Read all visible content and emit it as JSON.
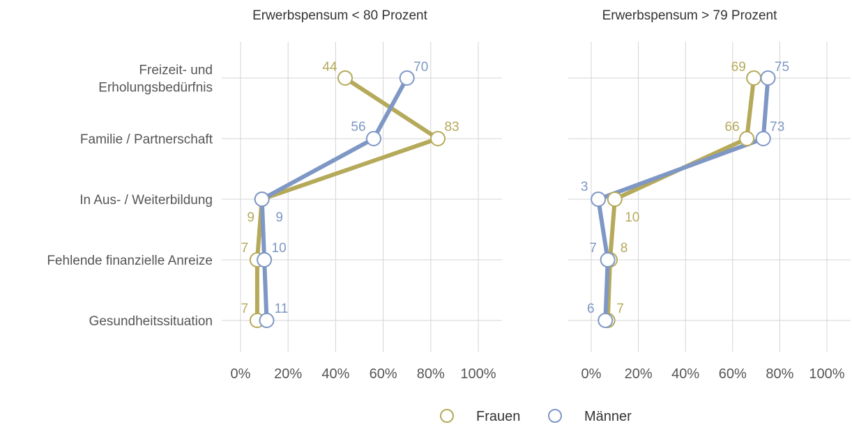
{
  "chart_data": {
    "type": "line",
    "orientation": "horizontal-dot-plot",
    "categories": [
      [
        "Freizeit- und",
        "Erholungsbedürfnis"
      ],
      [
        "Familie / Partnerschaft"
      ],
      [
        "In Aus- / Weiterbildung"
      ],
      [
        "Fehlende finanzielle Anreize"
      ],
      [
        "Gesundheitssituation"
      ]
    ],
    "xlim": [
      0,
      100
    ],
    "xticks": [
      0,
      20,
      40,
      60,
      80,
      100
    ],
    "xtick_labels": [
      "0%",
      "20%",
      "40%",
      "60%",
      "80%",
      "100%"
    ],
    "grid": true,
    "legend_position": "bottom",
    "panels": [
      {
        "title": "Erwerbspensum < 80 Prozent",
        "series": [
          {
            "name": "Frauen",
            "values": [
              44,
              83,
              9,
              7,
              7
            ]
          },
          {
            "name": "Männer",
            "values": [
              70,
              56,
              9,
              10,
              11
            ]
          }
        ]
      },
      {
        "title": "Erwerbspensum > 79 Prozent",
        "series": [
          {
            "name": "Frauen",
            "values": [
              69,
              66,
              10,
              8,
              7
            ]
          },
          {
            "name": "Männer",
            "values": [
              75,
              73,
              3,
              7,
              6
            ]
          }
        ]
      }
    ]
  },
  "colors": {
    "Frauen": "#b5a95a",
    "Männer": "#7e97c5",
    "grid": "#d4d4d4"
  },
  "legend": {
    "items": [
      {
        "name": "Frauen",
        "icon": "circle-outline-icon"
      },
      {
        "name": "Männer",
        "icon": "circle-outline-icon"
      }
    ]
  }
}
